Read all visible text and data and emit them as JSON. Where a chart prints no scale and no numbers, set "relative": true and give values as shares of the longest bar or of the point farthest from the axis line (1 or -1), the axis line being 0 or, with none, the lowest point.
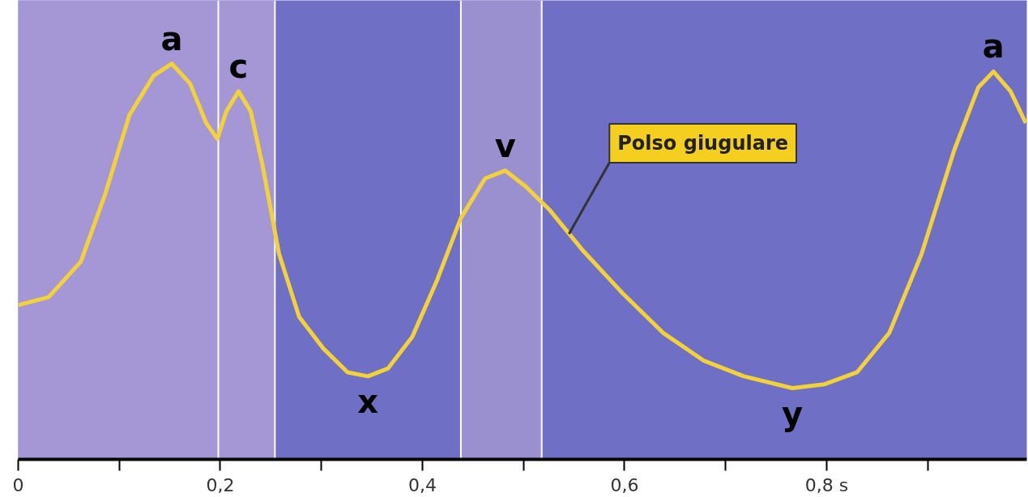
{
  "chart_data": {
    "type": "line",
    "relative": true,
    "x": [
      0,
      0.03,
      0.062,
      0.086,
      0.11,
      0.134,
      0.152,
      0.17,
      0.186,
      0.197,
      0.206,
      0.218,
      0.23,
      0.242,
      0.258,
      0.278,
      0.302,
      0.326,
      0.346,
      0.366,
      0.39,
      0.414,
      0.438,
      0.462,
      0.482,
      0.502,
      0.526,
      0.558,
      0.598,
      0.638,
      0.678,
      0.718,
      0.766,
      0.798,
      0.83,
      0.862,
      0.894,
      0.926,
      0.95,
      0.965,
      0.982,
      0.997
    ],
    "series": [
      {
        "color": "#f2d23a",
        "values": [
          0.39,
          0.41,
          0.5,
          0.67,
          0.87,
          0.97,
          1.0,
          0.95,
          0.85,
          0.81,
          0.88,
          0.93,
          0.88,
          0.74,
          0.52,
          0.36,
          0.28,
          0.22,
          0.21,
          0.23,
          0.31,
          0.45,
          0.61,
          0.71,
          0.73,
          0.69,
          0.63,
          0.53,
          0.42,
          0.32,
          0.25,
          0.21,
          0.18,
          0.19,
          0.22,
          0.32,
          0.52,
          0.78,
          0.94,
          0.98,
          0.93,
          0.85
        ]
      }
    ],
    "xlim": [
      0,
      0.998
    ],
    "xticks": [
      0,
      {
        "value": 0.1,
        "label": null
      },
      {
        "value": 0.2,
        "label": "0,2"
      },
      {
        "value": 0.3,
        "label": null
      },
      {
        "value": 0.4,
        "label": "0,4"
      },
      {
        "value": 0.5,
        "label": null
      },
      {
        "value": 0.6,
        "label": "0,6"
      },
      {
        "value": 0.7,
        "label": null
      },
      {
        "value": 0.8,
        "label": "0,8 s"
      },
      {
        "value": 0.9,
        "label": null
      }
    ],
    "bands": [
      {
        "axis": "x",
        "from": 0,
        "to": 0.254,
        "color": "#a596d6"
      },
      {
        "axis": "x",
        "from": 0.438,
        "to": 0.518,
        "color": "#9a90d0"
      }
    ],
    "ref_lines": [
      {
        "axis": "x",
        "value": 0.198,
        "color": "#ffffff"
      },
      {
        "axis": "x",
        "value": 0.254,
        "color": "#ffffff"
      },
      {
        "axis": "x",
        "value": 0.438,
        "color": "#ffffff"
      },
      {
        "axis": "x",
        "value": 0.518,
        "color": "#ffffff"
      }
    ],
    "annotations": [
      {
        "text": "a",
        "x": 0.152,
        "y": 1.0
      },
      {
        "text": "c",
        "x": 0.218,
        "y": 0.93
      },
      {
        "text": "x",
        "x": 0.346,
        "y": 0.21
      },
      {
        "text": "v",
        "x": 0.482,
        "y": 0.73
      },
      {
        "text": "y",
        "x": 0.766,
        "y": 0.18
      },
      {
        "text": "a",
        "x": 0.965,
        "y": 0.98
      },
      {
        "text": "Polso giugulare",
        "x": 0.545,
        "y": 0.57
      }
    ],
    "grid": false,
    "marker": "none",
    "line_style": "solid"
  }
}
